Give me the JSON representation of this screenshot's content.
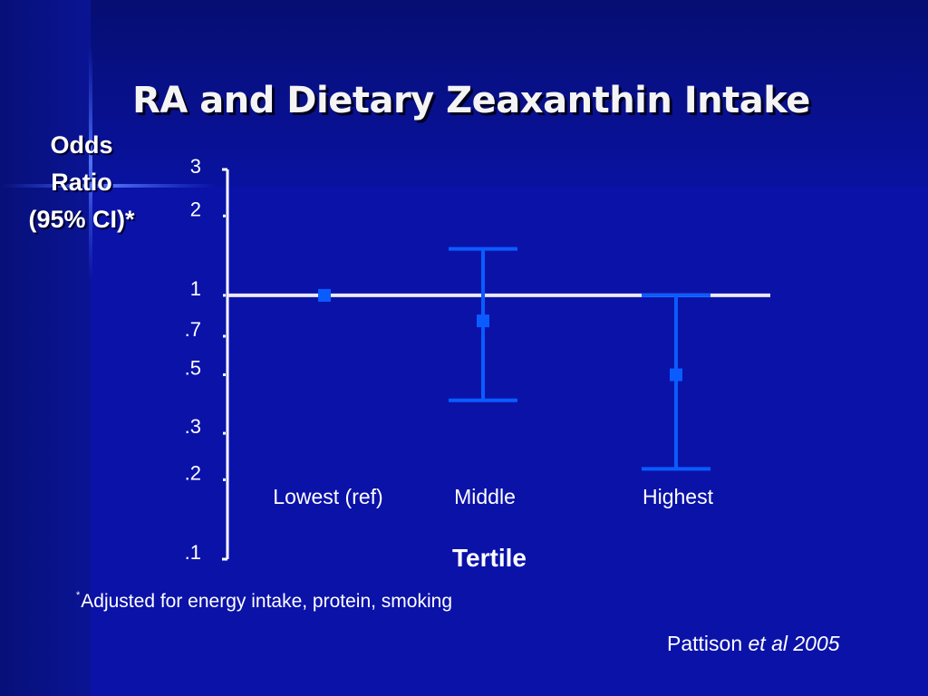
{
  "slide": {
    "title": "RA and Dietary Zeaxanthin Intake",
    "footnote_mark": "*",
    "footnote": "Adjusted for energy intake, protein, smoking",
    "citation_author": "Pattison",
    "citation_etal": "et al 2005"
  },
  "colors": {
    "background": "#0b12a8",
    "marker": "#0a5cff",
    "reference_line": "#e8e8f4",
    "text": "#ffffff"
  },
  "chart_data": {
    "type": "scatter",
    "title": "RA and Dietary Zeaxanthin Intake",
    "ylabel_lines": [
      "Odds",
      "Ratio",
      "(95% CI)*"
    ],
    "xlabel": "Tertile",
    "y_scale": "log",
    "ylim": [
      0.1,
      3
    ],
    "y_ticks": [
      {
        "value": 3,
        "label": "3"
      },
      {
        "value": 2,
        "label": "2"
      },
      {
        "value": 1,
        "label": "1"
      },
      {
        "value": 0.7,
        "label": ".7"
      },
      {
        "value": 0.5,
        "label": ".5"
      },
      {
        "value": 0.3,
        "label": ".3"
      },
      {
        "value": 0.2,
        "label": ".2"
      },
      {
        "value": 0.1,
        "label": ".1"
      }
    ],
    "reference_line": 1,
    "categories": [
      "Lowest (ref)",
      "Middle",
      "Highest"
    ],
    "points": [
      {
        "category": "Lowest (ref)",
        "or": 1.0
      },
      {
        "category": "Middle",
        "or": 0.8,
        "ci_low": 0.4,
        "ci_high": 1.5
      },
      {
        "category": "Highest",
        "or": 0.5,
        "ci_low": 0.22,
        "ci_high": 1.0
      }
    ]
  }
}
